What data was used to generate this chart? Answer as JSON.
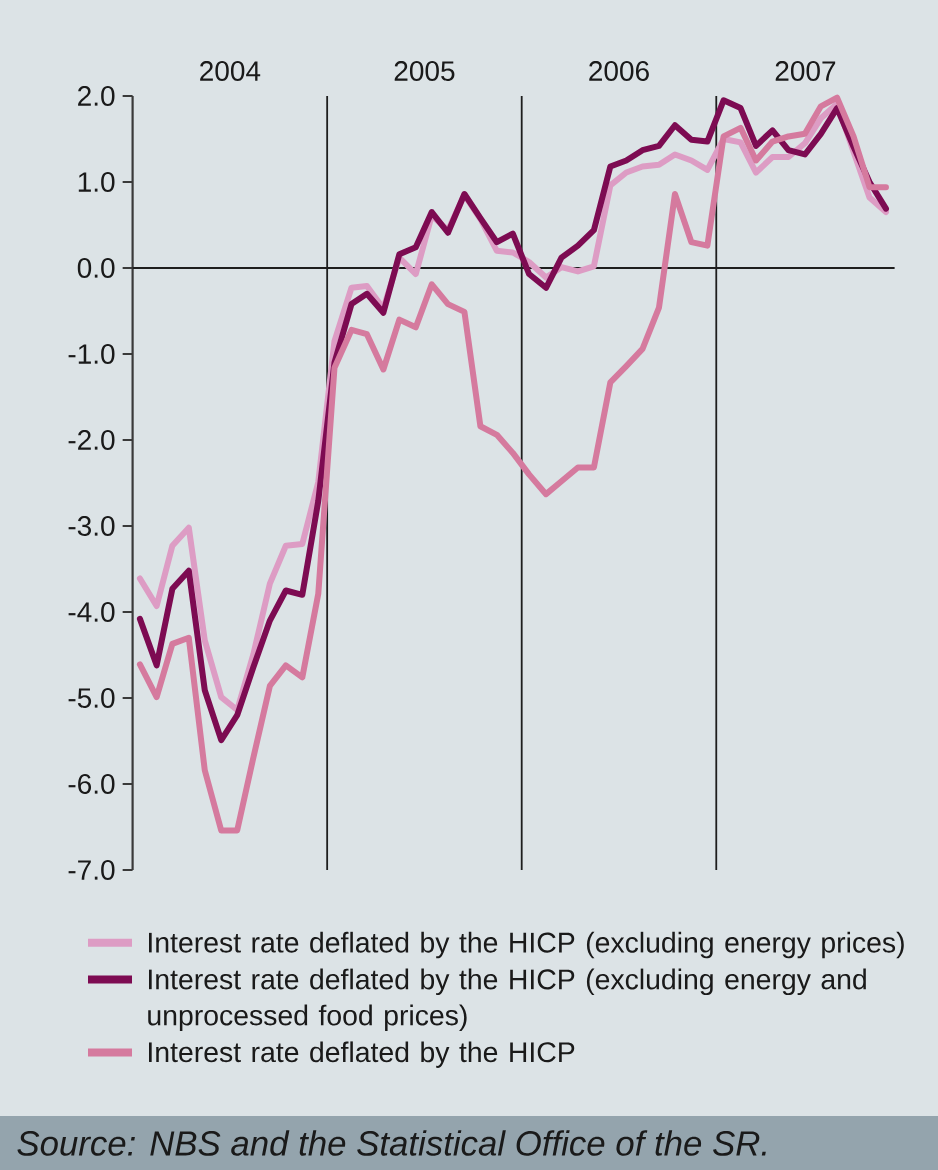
{
  "chart_data": {
    "type": "line",
    "x": [
      "2004-01-15",
      "2004-02-15",
      "2004-03-15",
      "2004-04-15",
      "2004-05-15",
      "2004-06-15",
      "2004-07-15",
      "2004-08-15",
      "2004-09-15",
      "2004-10-15",
      "2004-11-15",
      "2004-12-15",
      "2005-01-15",
      "2005-02-15",
      "2005-03-15",
      "2005-04-15",
      "2005-05-15",
      "2005-06-15",
      "2005-07-15",
      "2005-08-15",
      "2005-09-15",
      "2005-10-15",
      "2005-11-15",
      "2005-12-15",
      "2006-01-15",
      "2006-02-15",
      "2006-03-15",
      "2006-04-15",
      "2006-05-15",
      "2006-06-15",
      "2006-07-15",
      "2006-08-15",
      "2006-09-15",
      "2006-10-15",
      "2006-11-15",
      "2006-12-15",
      "2007-01-15",
      "2007-02-15",
      "2007-03-15",
      "2007-04-15",
      "2007-05-15",
      "2007-06-15",
      "2007-07-15",
      "2007-08-15",
      "2007-09-15",
      "2007-10-15",
      "2007-11-15"
    ],
    "series": [
      {
        "name": "Interest rate deflated by the HICP (excluding energy prices)",
        "color": "#dd9cc4",
        "values": [
          -3.61,
          -3.93,
          -3.23,
          -3.02,
          -4.33,
          -4.99,
          -5.14,
          -4.49,
          -3.67,
          -3.23,
          -3.21,
          -2.49,
          -0.85,
          -0.23,
          -0.21,
          -0.47,
          0.12,
          -0.07,
          0.61,
          0.44,
          0.85,
          0.57,
          0.2,
          0.18,
          0.07,
          -0.11,
          0.01,
          -0.04,
          0.02,
          0.96,
          1.11,
          1.18,
          1.2,
          1.32,
          1.25,
          1.14,
          1.5,
          1.46,
          1.11,
          1.29,
          1.29,
          1.45,
          1.74,
          1.91,
          1.35,
          0.82,
          0.65
        ]
      },
      {
        "name": "Interest rate deflated by the HICP (excluding energy and unprocessed food prices)",
        "color": "#7d0b52",
        "values": [
          -4.08,
          -4.62,
          -3.73,
          -3.52,
          -4.91,
          -5.49,
          -5.2,
          -4.64,
          -4.1,
          -3.75,
          -3.8,
          -2.71,
          -1.1,
          -0.42,
          -0.3,
          -0.52,
          0.16,
          0.24,
          0.65,
          0.41,
          0.86,
          0.58,
          0.3,
          0.4,
          -0.07,
          -0.23,
          0.12,
          0.26,
          0.44,
          1.18,
          1.25,
          1.37,
          1.42,
          1.66,
          1.49,
          1.47,
          1.95,
          1.86,
          1.42,
          1.6,
          1.37,
          1.32,
          1.56,
          1.86,
          1.41,
          1.0,
          0.69
        ]
      },
      {
        "name": "Interest rate deflated by the HICP",
        "color": "#d57a9e",
        "values": [
          -4.61,
          -4.99,
          -4.37,
          -4.3,
          -5.84,
          -6.54,
          -6.54,
          -5.69,
          -4.86,
          -4.62,
          -4.76,
          -3.79,
          -1.16,
          -0.72,
          -0.77,
          -1.18,
          -0.6,
          -0.69,
          -0.19,
          -0.42,
          -0.51,
          -1.84,
          -1.94,
          -2.15,
          -2.4,
          -2.63,
          -2.48,
          -2.32,
          -2.32,
          -1.33,
          -1.14,
          -0.94,
          -0.46,
          0.86,
          0.3,
          0.26,
          1.53,
          1.63,
          1.25,
          1.47,
          1.53,
          1.56,
          1.88,
          1.98,
          1.53,
          0.94,
          0.94
        ]
      }
    ],
    "xlim": [
      "2004-01-01",
      "2007-12-01"
    ],
    "xticks": [
      {
        "value": "2004-07-01",
        "label": "2004"
      },
      {
        "value": "2005-07-01",
        "label": "2005"
      },
      {
        "value": "2006-07-01",
        "label": "2006"
      },
      {
        "value": "2007-06-16",
        "label": "2007"
      }
    ],
    "ylim": [
      -7,
      2
    ],
    "yticks": [
      {
        "value": -7,
        "label": "-7.0"
      },
      {
        "value": -6,
        "label": "-6.0"
      },
      {
        "value": -5,
        "label": "-5.0"
      },
      {
        "value": -4,
        "label": "-4.0"
      },
      {
        "value": -3,
        "label": "-3.0"
      },
      {
        "value": -2,
        "label": "-2.0"
      },
      {
        "value": -1,
        "label": "-1.0"
      },
      {
        "value": 0,
        "label": "0.0"
      },
      {
        "value": 1,
        "label": "1.0"
      },
      {
        "value": 2,
        "label": "2.0"
      }
    ],
    "ref_lines": [
      {
        "axis": "y",
        "value": 0,
        "color": "#1e1e1e"
      },
      {
        "axis": "x",
        "value": "2005-01-01",
        "color": "#1e1e1e"
      },
      {
        "axis": "x",
        "value": "2006-01-01",
        "color": "#1e1e1e"
      },
      {
        "axis": "x",
        "value": "2007-01-01",
        "color": "#1e1e1e"
      }
    ],
    "legend": "bottom",
    "annotations": [
      "Source: NBS and the Statistical Office of the SR."
    ]
  }
}
